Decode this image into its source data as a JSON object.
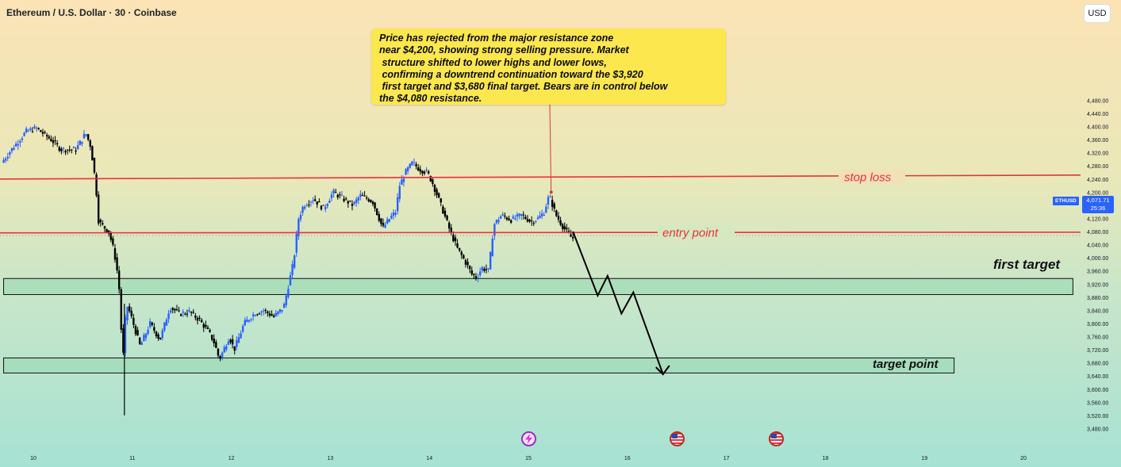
{
  "header": {
    "title": "Ethereum / U.S. Dollar · 30 · Coinbase",
    "currency_button": "USD"
  },
  "annotation": {
    "note_text": "Price has rejected from the major resistance zone\nnear $4,200, showing strong selling pressure. Market\n structure shifted to lower highs and lower lows,\n confirming a downtrend continuation toward the $3,920\n first target and $3,680 final target. Bears are in control below\nthe $4,080 resistance."
  },
  "price_tag": {
    "symbol": "ETHUSD",
    "price": "4,071.71",
    "countdown": "25:36"
  },
  "colors": {
    "up_candle": "#2962ff",
    "down_candle": "#000000",
    "stop_loss_line": "#e5323d",
    "entry_line": "#e5323d",
    "projection": "#000000",
    "note_background": "#fce74f",
    "price_tag": "#2962ff"
  },
  "events": [
    {
      "icon": "lightning-icon",
      "day": 15.0
    },
    {
      "icon": "us-flag-icon",
      "day": 16.5
    },
    {
      "icon": "us-flag-icon",
      "day": 17.5
    }
  ],
  "chart_data": {
    "type": "candlestick",
    "ylim": [
      3460,
      4500
    ],
    "xlim": [
      9.7,
      20.5
    ],
    "y_ticks": [
      3480,
      3520,
      3560,
      3600,
      3640,
      3680,
      3720,
      3760,
      3800,
      3840,
      3880,
      3920,
      3960,
      4000,
      4040,
      4080,
      4120,
      4160,
      4200,
      4240,
      4280,
      4320,
      4360,
      4400,
      4440,
      4480
    ],
    "y_tick_labels": [
      "3,480.00",
      "3,520.00",
      "3,560.00",
      "3,600.00",
      "3,640.00",
      "3,680.00",
      "3,720.00",
      "3,760.00",
      "3,800.00",
      "3,840.00",
      "3,880.00",
      "3,920.00",
      "3,960.00",
      "4,000.00",
      "4,040.00",
      "4,080.00",
      "4,120.00",
      "4,160.00",
      "4,200.00",
      "4,240.00",
      "4,280.00",
      "4,320.00",
      "4,360.00",
      "4,400.00",
      "4,440.00",
      "4,480.00"
    ],
    "x_ticks": [
      10,
      11,
      12,
      13,
      14,
      15,
      16,
      17,
      18,
      19,
      20
    ],
    "x_tick_labels": [
      "10",
      "11",
      "12",
      "13",
      "14",
      "15",
      "16",
      "17",
      "18",
      "19",
      "20"
    ],
    "price_path": [
      [
        9.7,
        4290
      ],
      [
        9.8,
        4330
      ],
      [
        9.95,
        4385
      ],
      [
        10.05,
        4395
      ],
      [
        10.2,
        4360
      ],
      [
        10.3,
        4330
      ],
      [
        10.45,
        4330
      ],
      [
        10.55,
        4380
      ],
      [
        10.6,
        4340
      ],
      [
        10.65,
        4230
      ],
      [
        10.68,
        4110
      ],
      [
        10.78,
        4080
      ],
      [
        10.82,
        4040
      ],
      [
        10.86,
        3980
      ],
      [
        10.9,
        3870
      ],
      [
        10.92,
        3660
      ],
      [
        10.96,
        3860
      ],
      [
        11.0,
        3830
      ],
      [
        11.05,
        3780
      ],
      [
        11.1,
        3730
      ],
      [
        11.2,
        3800
      ],
      [
        11.3,
        3750
      ],
      [
        11.4,
        3850
      ],
      [
        11.5,
        3830
      ],
      [
        11.6,
        3835
      ],
      [
        11.7,
        3810
      ],
      [
        11.8,
        3770
      ],
      [
        11.85,
        3740
      ],
      [
        11.9,
        3690
      ],
      [
        12.0,
        3760
      ],
      [
        12.05,
        3720
      ],
      [
        12.15,
        3800
      ],
      [
        12.25,
        3830
      ],
      [
        12.35,
        3840
      ],
      [
        12.45,
        3820
      ],
      [
        12.55,
        3850
      ],
      [
        12.65,
        3990
      ],
      [
        12.7,
        4120
      ],
      [
        12.75,
        4160
      ],
      [
        12.85,
        4180
      ],
      [
        12.95,
        4150
      ],
      [
        13.05,
        4200
      ],
      [
        13.15,
        4180
      ],
      [
        13.25,
        4160
      ],
      [
        13.32,
        4190
      ],
      [
        13.4,
        4180
      ],
      [
        13.45,
        4170
      ],
      [
        13.55,
        4090
      ],
      [
        13.62,
        4120
      ],
      [
        13.68,
        4140
      ],
      [
        13.72,
        4220
      ],
      [
        13.78,
        4260
      ],
      [
        13.85,
        4290
      ],
      [
        13.92,
        4270
      ],
      [
        14.0,
        4260
      ],
      [
        14.05,
        4230
      ],
      [
        14.15,
        4150
      ],
      [
        14.22,
        4090
      ],
      [
        14.3,
        4030
      ],
      [
        14.38,
        3990
      ],
      [
        14.45,
        3950
      ],
      [
        14.5,
        3940
      ],
      [
        14.55,
        3970
      ],
      [
        14.62,
        3960
      ],
      [
        14.67,
        4100
      ],
      [
        14.75,
        4130
      ],
      [
        14.85,
        4115
      ],
      [
        14.95,
        4130
      ],
      [
        15.05,
        4110
      ],
      [
        15.12,
        4120
      ],
      [
        15.18,
        4140
      ],
      [
        15.23,
        4190
      ],
      [
        15.3,
        4130
      ],
      [
        15.38,
        4090
      ],
      [
        15.46,
        4060
      ]
    ],
    "levels": [
      {
        "name": "stop loss",
        "start": [
          9.7,
          4240
        ],
        "end": [
          20.5,
          4252
        ]
      },
      {
        "name": "entry point",
        "start": [
          9.7,
          4076
        ],
        "end": [
          20.5,
          4078
        ]
      }
    ],
    "zones": [
      {
        "name": "first target",
        "y_range": [
          3888,
          3937
        ],
        "x_range": [
          9.7,
          20.5
        ]
      },
      {
        "name": "target point",
        "y_range": [
          3649,
          3695
        ],
        "x_range": [
          9.7,
          19.3
        ]
      }
    ],
    "projection_path": [
      [
        15.45,
        4080
      ],
      [
        15.7,
        3885
      ],
      [
        15.8,
        3945
      ],
      [
        15.94,
        3830
      ],
      [
        16.06,
        3895
      ],
      [
        16.36,
        3645
      ]
    ],
    "labels": {
      "stop_loss": "stop loss",
      "entry_point": "entry point",
      "first_target": "first target",
      "target_point": "target point"
    }
  }
}
